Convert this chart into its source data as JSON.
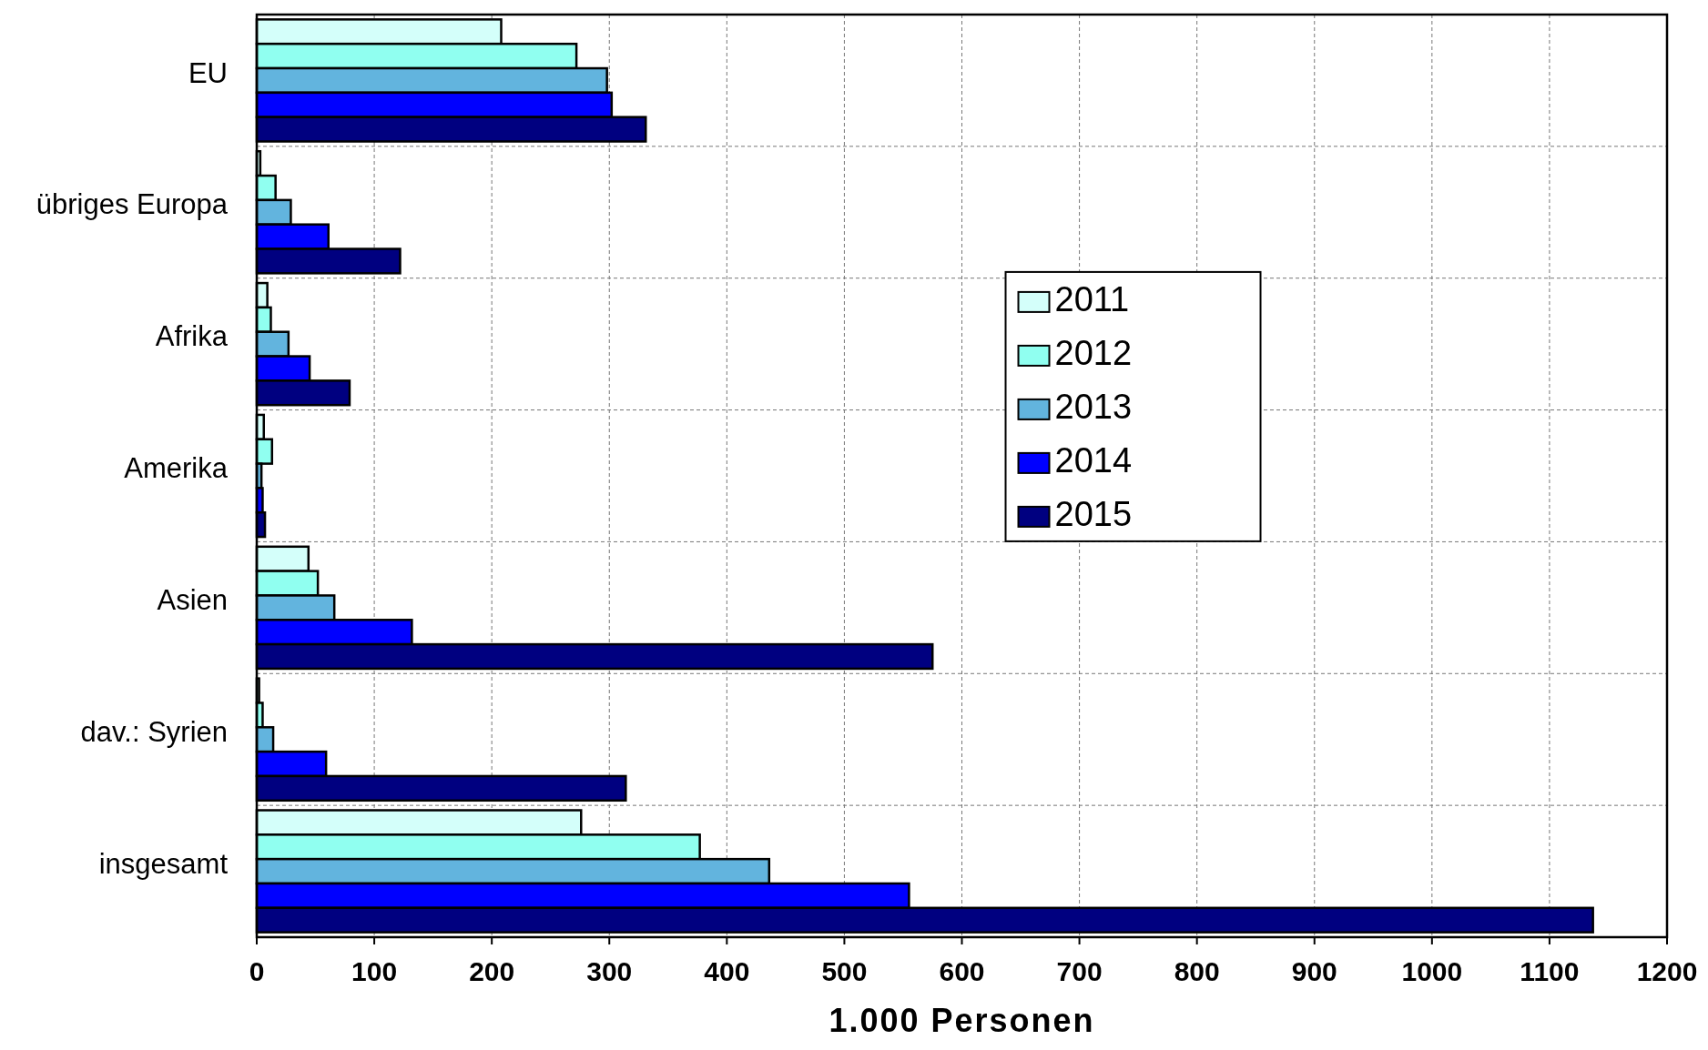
{
  "chart_data": {
    "type": "bar",
    "orientation": "horizontal",
    "xlabel": "1.000 Personen",
    "categories": [
      "EU",
      "übriges Europa",
      "Afrika",
      "Amerika",
      "Asien",
      "dav.: Syrien",
      "insgesamt"
    ],
    "series": [
      {
        "name": "2011",
        "color": "#d4fffa",
        "values": [
          208,
          3,
          9,
          6,
          44,
          2,
          276
        ]
      },
      {
        "name": "2012",
        "color": "#90fff0",
        "values": [
          272,
          16,
          12,
          13,
          52,
          5,
          377
        ]
      },
      {
        "name": "2013",
        "color": "#62b4de",
        "values": [
          298,
          29,
          27,
          4,
          66,
          14,
          436
        ]
      },
      {
        "name": "2014",
        "color": "#0000ff",
        "values": [
          302,
          61,
          45,
          5,
          132,
          59,
          555
        ]
      },
      {
        "name": "2015",
        "color": "#000080",
        "values": [
          331,
          122,
          79,
          7,
          575,
          314,
          1137
        ]
      }
    ],
    "xlim": [
      0,
      1200
    ],
    "xticks": [
      0,
      100,
      200,
      300,
      400,
      500,
      600,
      700,
      800,
      900,
      1000,
      1100,
      1200
    ],
    "grid": true,
    "legend": "right"
  }
}
